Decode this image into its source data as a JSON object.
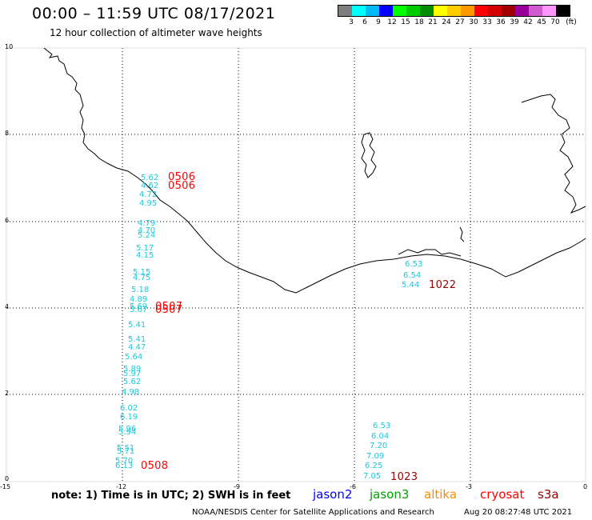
{
  "header": {
    "title": "00:00 – 11:59 UTC 08/17/2021",
    "subtitle": "12 hour collection of altimeter wave heights"
  },
  "legend": {
    "colors": [
      "#7f7f7f",
      "#00ffff",
      "#00b9f5",
      "#0000ff",
      "#00ff00",
      "#00cc00",
      "#008c00",
      "#ffff00",
      "#ffcc00",
      "#ff9900",
      "#ff0000",
      "#d40000",
      "#a00000",
      "#990099",
      "#d05ad0",
      "#ff96ff",
      "#000000"
    ],
    "labels": [
      "3",
      "6",
      "9",
      "12",
      "15",
      "18",
      "21",
      "24",
      "27",
      "30",
      "33",
      "36",
      "39",
      "42",
      "45",
      "70"
    ],
    "unit": "(ft)"
  },
  "axes": {
    "x_ticks": [
      "-15",
      "-12",
      "-9",
      "-6",
      "-3",
      "0"
    ],
    "y_ticks": [
      "10",
      "8",
      "6",
      "4",
      "2",
      "0"
    ]
  },
  "observations": {
    "color": "#1ec8dc",
    "track1": [
      "5.62",
      "4.62",
      "4.72",
      "4.95",
      "4.79",
      "4.70",
      "5.24",
      "5.17",
      "4.15",
      "5.15",
      "4.75",
      "5.18",
      "4.89",
      "5.69",
      "5.67",
      "5.41",
      "5.41",
      "4.47",
      "5.64",
      "5.89",
      "5.97",
      "5.62",
      "4.98",
      "6.02",
      "6.19",
      "5.96",
      "5.94",
      "5.51",
      "5.71",
      "5.70",
      "6.13"
    ],
    "track2": [
      "6.53",
      "6.54",
      "5.44"
    ],
    "track3": [
      "6.53",
      "6.04",
      "7.20",
      "7.09",
      "6.25",
      "7.05"
    ]
  },
  "times": {
    "t1": "0506",
    "t2": "0506",
    "t3": "0507",
    "t4": "0507",
    "t5": "1022",
    "t6": "0508",
    "t7": "1023"
  },
  "note": "note: 1) Time is in UTC; 2) SWH is in feet",
  "missions": [
    {
      "name": "jason2",
      "color": "#0000ff"
    },
    {
      "name": "jason3",
      "color": "#00a000"
    },
    {
      "name": "altika",
      "color": "#ff8c00"
    },
    {
      "name": "cryosat",
      "color": "#ff0000"
    },
    {
      "name": "s3a",
      "color": "#990000"
    }
  ],
  "footer": {
    "center": "NOAA/NESDIS Center for Satellite Applications and Research",
    "timestamp": "Aug 20 08:27:48 UTC 2021"
  }
}
